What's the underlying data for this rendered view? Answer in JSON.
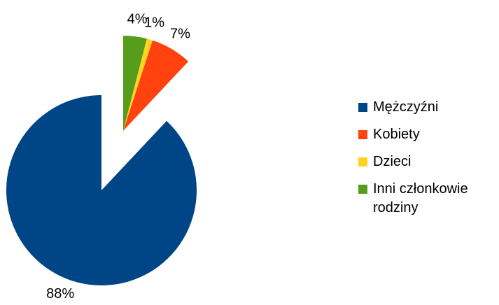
{
  "chart_data": {
    "type": "pie",
    "categories": [
      "Mężczyźni",
      "Kobiety",
      "Dzieci",
      "Inni członkowie rodziny"
    ],
    "values": [
      88,
      7,
      1,
      4
    ],
    "value_labels": [
      "88%",
      "7%",
      "1%",
      "4%"
    ],
    "colors": [
      "#004586",
      "#ff420e",
      "#ffd320",
      "#579d1c"
    ],
    "legend": "right"
  }
}
